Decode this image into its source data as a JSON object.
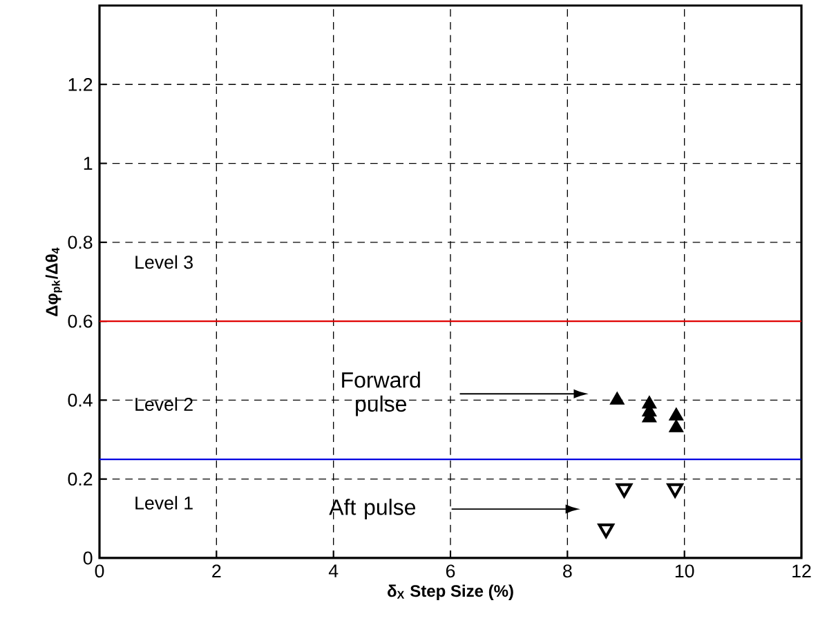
{
  "chart_data": {
    "type": "scatter",
    "xlabel": "δ$_{X}$ Step Size (%)",
    "ylabel": "Δφ$_{pk}$/Δθ$_{4}$",
    "xlim": [
      0,
      12
    ],
    "ylim": [
      0,
      1.4
    ],
    "xticks": [
      0,
      2,
      4,
      6,
      8,
      10,
      12
    ],
    "yticks": [
      0,
      0.2,
      0.4,
      0.6,
      0.8,
      1,
      1.2
    ],
    "grid": true,
    "series": [
      {
        "color": "#000000",
        "marker": "triangle",
        "x": [
          8.85,
          9.4,
          9.4,
          9.4,
          9.86,
          9.86
        ],
        "values": [
          0.4,
          0.39,
          0.37,
          0.355,
          0.36,
          0.33
        ]
      },
      {
        "color": "#000000",
        "marker": "triangle-down",
        "x": [
          8.97,
          9.84,
          8.66
        ],
        "values": [
          0.176,
          0.176,
          0.074
        ]
      }
    ],
    "ref_lines": [
      {
        "axis": "y",
        "value": 0.6,
        "color": "#e00000"
      },
      {
        "axis": "y",
        "value": 0.25,
        "color": "#0000e0"
      }
    ],
    "annotations": [
      "Level 3",
      "Level 2",
      "Level 1",
      "Forward pulse",
      "Aft pulse"
    ]
  }
}
